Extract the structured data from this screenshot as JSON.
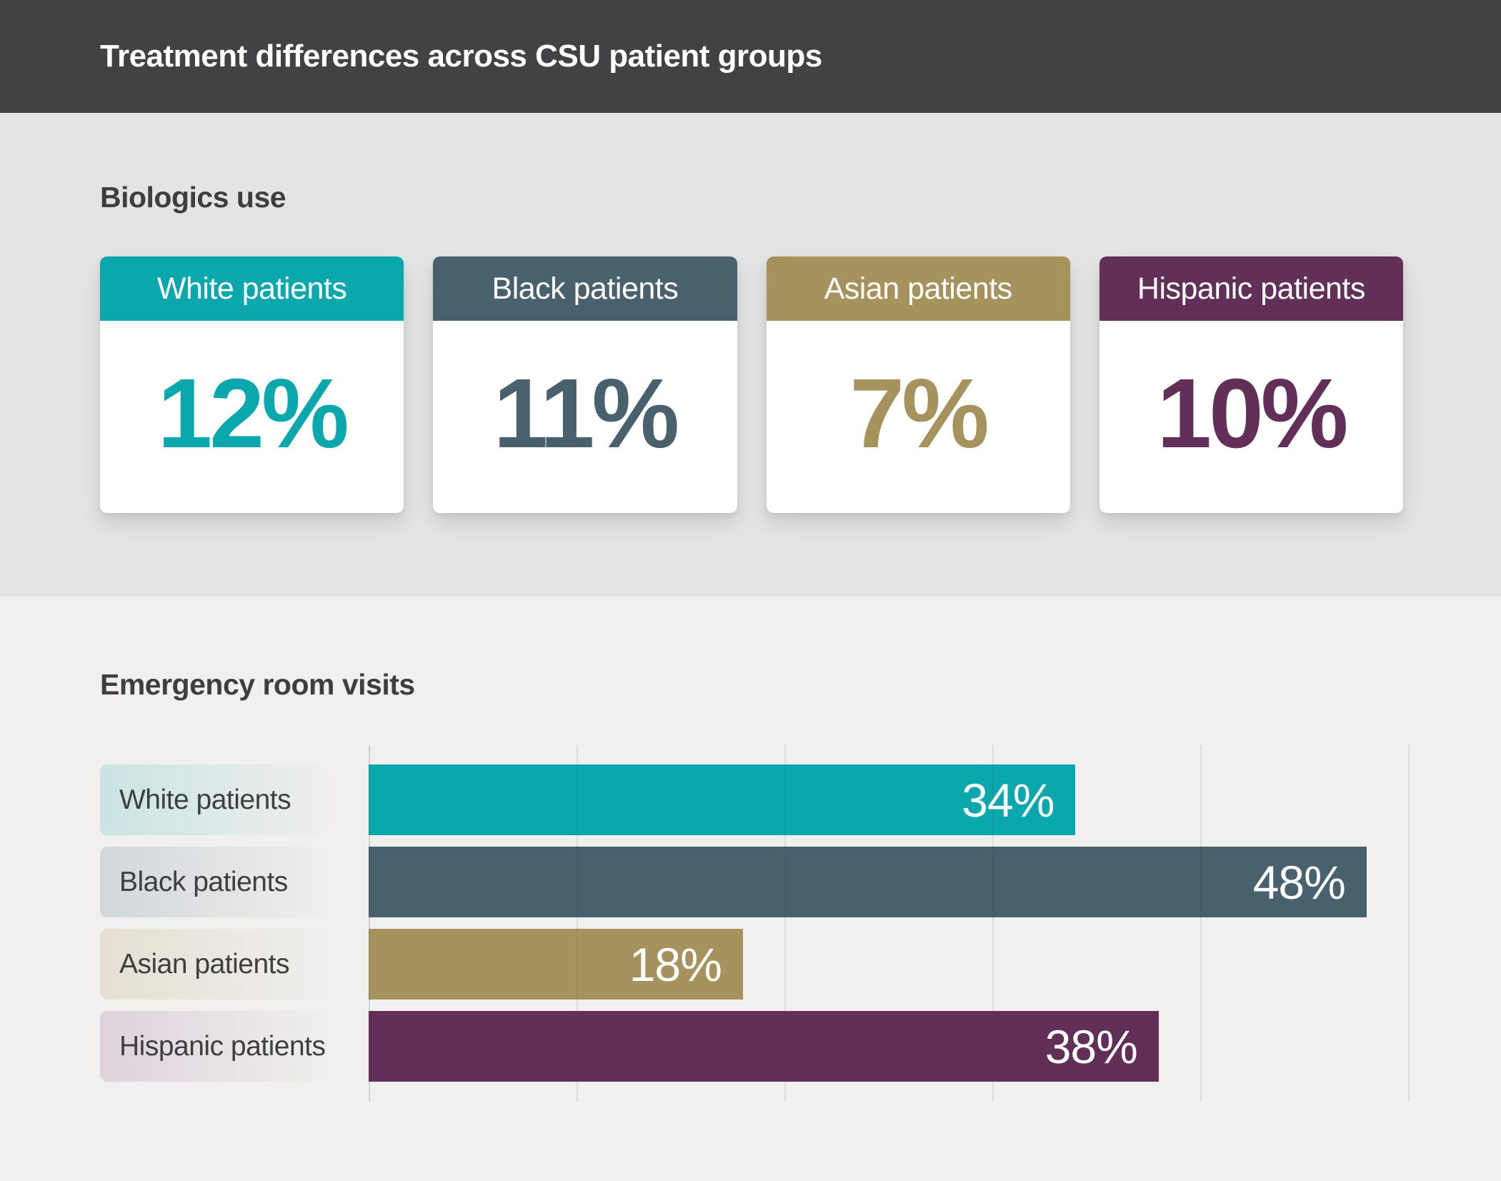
{
  "header": {
    "title": "Treatment differences across CSU patient groups"
  },
  "biologics": {
    "heading": "Biologics use",
    "cards": [
      {
        "label": "White patients",
        "value": "12%",
        "color": "#0AA7AC"
      },
      {
        "label": "Black patients",
        "value": "11%",
        "color": "#48616D"
      },
      {
        "label": "Asian patients",
        "value": "7%",
        "color": "#A6925C"
      },
      {
        "label": "Hispanic patients",
        "value": "10%",
        "color": "#612F58"
      }
    ]
  },
  "er": {
    "heading": "Emergency room visits"
  },
  "chart_data": {
    "type": "bar",
    "orientation": "horizontal",
    "title": "Emergency room visits",
    "categories": [
      "White patients",
      "Black patients",
      "Asian patients",
      "Hispanic patients"
    ],
    "values": [
      34,
      48,
      18,
      38
    ],
    "value_labels": [
      "34%",
      "48%",
      "18%",
      "38%"
    ],
    "value_suffix": "%",
    "colors": [
      "#0AA7AC",
      "#48616D",
      "#A6925C",
      "#612F58"
    ],
    "pill_colors": [
      "#C9E4E3",
      "#D2D7DA",
      "#E5E0D2",
      "#DED3DC"
    ],
    "pill_fade": "#F0EFEE",
    "xlabel": "",
    "ylabel": "",
    "xlim": [
      0,
      50
    ],
    "gridline_step": 10,
    "grid": true,
    "legend": "none"
  }
}
